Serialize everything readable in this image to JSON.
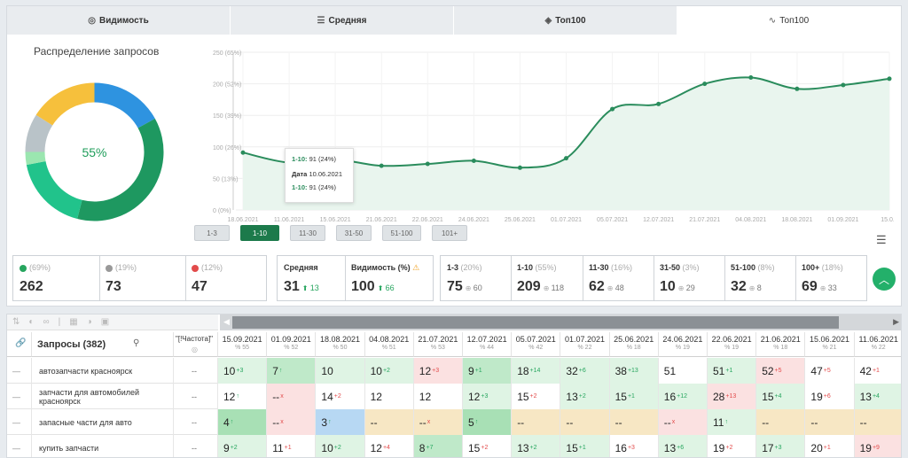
{
  "tabs": [
    {
      "icon": "eye-icon",
      "label": "Видимость",
      "active": false
    },
    {
      "icon": "list-icon",
      "label": "Средняя",
      "active": false
    },
    {
      "icon": "cube-icon",
      "label": "Топ100",
      "active": false
    },
    {
      "icon": "trend-icon",
      "label": "Топ100",
      "active": true
    }
  ],
  "donut": {
    "title": "Распределение запросов",
    "center_label": "55%",
    "segments": [
      {
        "color": "#2e93e0",
        "value": 17
      },
      {
        "color": "#1e9860",
        "value": 37
      },
      {
        "color": "#21c38b",
        "value": 18
      },
      {
        "color": "#9be6b0",
        "value": 3
      },
      {
        "color": "#b9c3c8",
        "value": 9
      },
      {
        "color": "#f6c03c",
        "value": 16
      }
    ]
  },
  "chart_data": {
    "type": "line",
    "x": [
      "18.06.2021",
      "11.06.2021",
      "15.06.2021",
      "21.06.2021",
      "22.06.2021",
      "24.06.2021",
      "25.06.2021",
      "01.07.2021",
      "05.07.2021",
      "12.07.2021",
      "21.07.2021",
      "04.08.2021",
      "18.08.2021",
      "01.09.2021",
      "15.0..."
    ],
    "values": [
      91,
      75,
      80,
      70,
      73,
      78,
      67,
      82,
      160,
      168,
      200,
      210,
      192,
      198,
      208
    ],
    "yticks": [
      "0 (0%)",
      "50 (13%)",
      "100 (26%)",
      "150 (39%)",
      "200 (52%)",
      "250 (65%)"
    ],
    "ylim": [
      0,
      250
    ],
    "color": "#2a8c5c"
  },
  "tooltip": {
    "line1_label": "1-10:",
    "line1_value": "91 (24%)",
    "line2_label": "Дата",
    "line2_value": "10.06.2021",
    "line3_label": "1-10:",
    "line3_value": "91 (24%)"
  },
  "range_buttons": [
    {
      "label": "1-3",
      "active": false
    },
    {
      "label": "1-10",
      "active": true
    },
    {
      "label": "11-30",
      "active": false
    },
    {
      "label": "31-50",
      "active": false
    },
    {
      "label": "51-100",
      "active": false
    },
    {
      "label": "101+",
      "active": false
    }
  ],
  "stats_group1": [
    {
      "color": "#26a55e",
      "pct": "(69%)",
      "value": "262"
    },
    {
      "color": "#999999",
      "pct": "(19%)",
      "value": "73"
    },
    {
      "color": "#e24b4b",
      "pct": "(12%)",
      "value": "47"
    }
  ],
  "stats_group2": [
    {
      "title": "Средняя",
      "value": "31",
      "delta": "13"
    },
    {
      "title": "Видимость (%)",
      "value": "100",
      "delta": "66",
      "warn": true
    }
  ],
  "stats_group3": [
    {
      "title": "1-3",
      "pct": "(20%)",
      "value": "75",
      "sub": "60"
    },
    {
      "title": "1-10",
      "pct": "(55%)",
      "value": "209",
      "sub": "118"
    },
    {
      "title": "11-30",
      "pct": "(16%)",
      "value": "62",
      "sub": "48"
    },
    {
      "title": "31-50",
      "pct": "(3%)",
      "value": "10",
      "sub": "29"
    },
    {
      "title": "51-100",
      "pct": "(8%)",
      "value": "32",
      "sub": "8"
    },
    {
      "title": "100+",
      "pct": "(18%)",
      "value": "69",
      "sub": "33"
    }
  ],
  "table": {
    "query_header": "Запросы (382)",
    "freq_header": "\"[!Частота]\"",
    "dates": [
      {
        "d": "15.09.2021",
        "f": "55"
      },
      {
        "d": "01.09.2021",
        "f": "52"
      },
      {
        "d": "18.08.2021",
        "f": "50"
      },
      {
        "d": "04.08.2021",
        "f": "51"
      },
      {
        "d": "21.07.2021",
        "f": "53"
      },
      {
        "d": "12.07.2021",
        "f": "44"
      },
      {
        "d": "05.07.2021",
        "f": "42"
      },
      {
        "d": "01.07.2021",
        "f": "22"
      },
      {
        "d": "25.06.2021",
        "f": "18"
      },
      {
        "d": "24.06.2021",
        "f": "19"
      },
      {
        "d": "22.06.2021",
        "f": "19"
      },
      {
        "d": "21.06.2021",
        "f": "18"
      },
      {
        "d": "15.06.2021",
        "f": "21"
      },
      {
        "d": "11.06.2021",
        "f": "22"
      }
    ],
    "rows": [
      {
        "query": "автозапчасти красноярск",
        "freq": "--",
        "cells": [
          {
            "v": "10",
            "d": "+3",
            "dir": "up",
            "bg": "#dff4e4"
          },
          {
            "v": "7",
            "d": "↑",
            "dir": "up",
            "bg": "#bfe9c9"
          },
          {
            "v": "10",
            "d": "",
            "dir": "",
            "bg": "#dff4e4"
          },
          {
            "v": "10",
            "d": "+2",
            "dir": "up",
            "bg": "#dff4e4"
          },
          {
            "v": "12",
            "d": "+3",
            "dir": "dn",
            "bg": "#fbe1e1"
          },
          {
            "v": "9",
            "d": "+1",
            "dir": "up",
            "bg": "#bfe9c9"
          },
          {
            "v": "18",
            "d": "+14",
            "dir": "up",
            "bg": "#dff4e4"
          },
          {
            "v": "32",
            "d": "+6",
            "dir": "up",
            "bg": "#dff4e4"
          },
          {
            "v": "38",
            "d": "+13",
            "dir": "up",
            "bg": "#dff4e4"
          },
          {
            "v": "51",
            "d": "",
            "dir": "",
            "bg": "#ffffff"
          },
          {
            "v": "51",
            "d": "+1",
            "dir": "up",
            "bg": "#dff4e4"
          },
          {
            "v": "52",
            "d": "+5",
            "dir": "dn",
            "bg": "#fbe1e1"
          },
          {
            "v": "47",
            "d": "+5",
            "dir": "dn",
            "bg": "#ffffff"
          },
          {
            "v": "42",
            "d": "+1",
            "dir": "dn",
            "bg": "#ffffff"
          }
        ]
      },
      {
        "query": "запчасти для автомобилей красноярск",
        "freq": "--",
        "cells": [
          {
            "v": "12",
            "d": "↑",
            "dir": "up",
            "bg": "#ffffff"
          },
          {
            "v": "--",
            "d": "x",
            "dir": "dn",
            "bg": "#fbe1e1"
          },
          {
            "v": "14",
            "d": "+2",
            "dir": "dn",
            "bg": "#ffffff"
          },
          {
            "v": "12",
            "d": "",
            "dir": "",
            "bg": "#ffffff"
          },
          {
            "v": "12",
            "d": "",
            "dir": "",
            "bg": "#ffffff"
          },
          {
            "v": "12",
            "d": "+3",
            "dir": "up",
            "bg": "#dff4e4"
          },
          {
            "v": "15",
            "d": "+2",
            "dir": "dn",
            "bg": "#ffffff"
          },
          {
            "v": "13",
            "d": "+2",
            "dir": "up",
            "bg": "#dff4e4"
          },
          {
            "v": "15",
            "d": "+1",
            "dir": "up",
            "bg": "#dff4e4"
          },
          {
            "v": "16",
            "d": "+12",
            "dir": "up",
            "bg": "#dff4e4"
          },
          {
            "v": "28",
            "d": "+13",
            "dir": "dn",
            "bg": "#fbe1e1"
          },
          {
            "v": "15",
            "d": "+4",
            "dir": "up",
            "bg": "#dff4e4"
          },
          {
            "v": "19",
            "d": "+6",
            "dir": "dn",
            "bg": "#ffffff"
          },
          {
            "v": "13",
            "d": "+4",
            "dir": "up",
            "bg": "#dff4e4"
          }
        ]
      },
      {
        "query": "запасные части для авто",
        "freq": "--",
        "cells": [
          {
            "v": "4",
            "d": "↑",
            "dir": "up",
            "bg": "#a8e0b5"
          },
          {
            "v": "--",
            "d": "x",
            "dir": "dn",
            "bg": "#fbe1e1"
          },
          {
            "v": "3",
            "d": "↑",
            "dir": "up",
            "bg": "#b7d8f3"
          },
          {
            "v": "--",
            "d": "",
            "dir": "",
            "bg": "#f7e7c4"
          },
          {
            "v": "--",
            "d": "x",
            "dir": "dn",
            "bg": "#f7e7c4"
          },
          {
            "v": "5",
            "d": "↑",
            "dir": "up",
            "bg": "#a8e0b5"
          },
          {
            "v": "--",
            "d": "",
            "dir": "",
            "bg": "#f7e7c4"
          },
          {
            "v": "--",
            "d": "",
            "dir": "",
            "bg": "#f7e7c4"
          },
          {
            "v": "--",
            "d": "",
            "dir": "",
            "bg": "#f7e7c4"
          },
          {
            "v": "--",
            "d": "x",
            "dir": "dn",
            "bg": "#fbe1e1"
          },
          {
            "v": "11",
            "d": "↑",
            "dir": "up",
            "bg": "#dff4e4"
          },
          {
            "v": "--",
            "d": "",
            "dir": "",
            "bg": "#f7e7c4"
          },
          {
            "v": "--",
            "d": "",
            "dir": "",
            "bg": "#f7e7c4"
          },
          {
            "v": "--",
            "d": "",
            "dir": "",
            "bg": "#f7e7c4"
          }
        ]
      },
      {
        "query": "купить запчасти",
        "freq": "--",
        "cells": [
          {
            "v": "9",
            "d": "+2",
            "dir": "up",
            "bg": "#dff4e4"
          },
          {
            "v": "11",
            "d": "+1",
            "dir": "dn",
            "bg": "#ffffff"
          },
          {
            "v": "10",
            "d": "+2",
            "dir": "up",
            "bg": "#dff4e4"
          },
          {
            "v": "12",
            "d": "+4",
            "dir": "dn",
            "bg": "#ffffff"
          },
          {
            "v": "8",
            "d": "+7",
            "dir": "up",
            "bg": "#bfe9c9"
          },
          {
            "v": "15",
            "d": "+2",
            "dir": "dn",
            "bg": "#ffffff"
          },
          {
            "v": "13",
            "d": "+2",
            "dir": "up",
            "bg": "#dff4e4"
          },
          {
            "v": "15",
            "d": "+1",
            "dir": "up",
            "bg": "#dff4e4"
          },
          {
            "v": "16",
            "d": "+3",
            "dir": "dn",
            "bg": "#ffffff"
          },
          {
            "v": "13",
            "d": "+6",
            "dir": "up",
            "bg": "#dff4e4"
          },
          {
            "v": "19",
            "d": "+2",
            "dir": "dn",
            "bg": "#ffffff"
          },
          {
            "v": "17",
            "d": "+3",
            "dir": "up",
            "bg": "#dff4e4"
          },
          {
            "v": "20",
            "d": "+1",
            "dir": "dn",
            "bg": "#ffffff"
          },
          {
            "v": "19",
            "d": "+9",
            "dir": "dn",
            "bg": "#fbe1e1"
          }
        ]
      }
    ]
  }
}
